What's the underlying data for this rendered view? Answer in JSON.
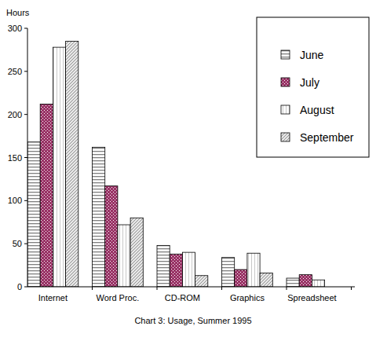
{
  "chart_data": {
    "type": "bar",
    "title": "Chart 3: Usage, Summer 1995",
    "y_label": "Hours",
    "categories": [
      "Internet",
      "Word Proc.",
      "CD-ROM",
      "Graphics",
      "Spreadsheet"
    ],
    "series": [
      {
        "name": "June",
        "color": "#808080",
        "values": [
          168,
          162,
          48,
          34,
          10
        ]
      },
      {
        "name": "July",
        "color": "#993366",
        "values": [
          212,
          117,
          38,
          20,
          14
        ]
      },
      {
        "name": "August",
        "color": "#c8c8c8",
        "values": [
          278,
          72,
          40,
          39,
          8
        ]
      },
      {
        "name": "September",
        "color": "#909090",
        "values": [
          285,
          80,
          13,
          16,
          0
        ]
      }
    ],
    "ylim": [
      0,
      300
    ],
    "yticks": [
      0,
      50,
      100,
      150,
      200,
      250,
      300
    ],
    "grid": false,
    "legend": "top-right"
  }
}
